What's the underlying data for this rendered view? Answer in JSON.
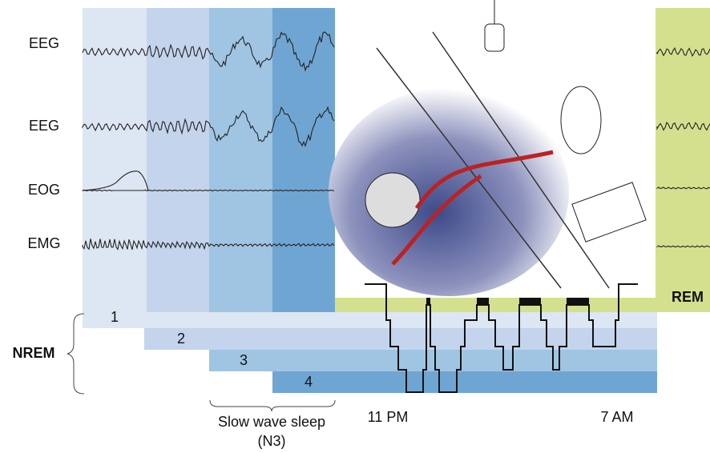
{
  "channels": [
    "EEG",
    "EEG",
    "EOG",
    "EMG"
  ],
  "stages": [
    "1",
    "2",
    "3",
    "4"
  ],
  "nrem_label": "NREM",
  "rem_label": "REM",
  "slow_wave": {
    "line1": "Slow wave sleep",
    "line2": "(N3)"
  },
  "times": [
    "11 PM",
    "7 AM"
  ]
}
